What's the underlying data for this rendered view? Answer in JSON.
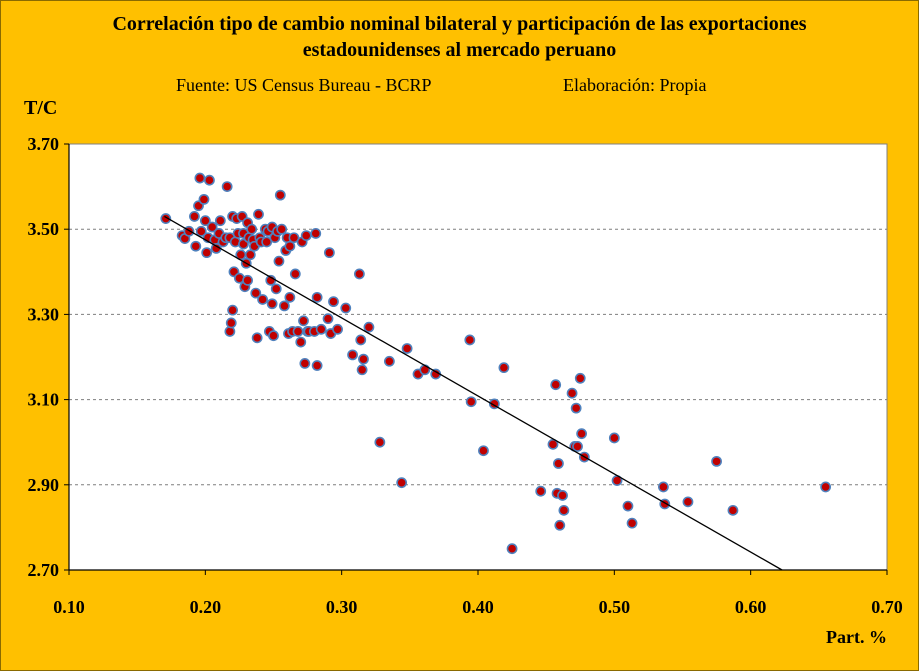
{
  "chart_data": {
    "type": "scatter",
    "title": "Correlación tipo de cambio nominal bilateral y participación de las exportaciones",
    "title_line2": "estadounidenses al mercado peruano",
    "source": "Fuente: US Census Bureau - BCRP",
    "credit": "Elaboración: Propia",
    "ylabel": "T/C",
    "xlabel": "Part. %",
    "xlim": [
      0.1,
      0.7
    ],
    "ylim": [
      2.7,
      3.7
    ],
    "x_ticks": [
      "0.10",
      "0.20",
      "0.30",
      "0.40",
      "0.50",
      "0.60",
      "0.70"
    ],
    "y_ticks": [
      "3.70",
      "3.50",
      "3.30",
      "3.10",
      "2.90",
      "2.70"
    ],
    "grid": "horizontal dashed",
    "colors": {
      "background": "#FFC000",
      "plot": "#FFFFFF",
      "marker_fill": "#C00000",
      "marker_edge": "#4F81BD",
      "trend": "#000000"
    },
    "trendline": {
      "x": [
        0.17,
        0.623
      ],
      "y": [
        3.53,
        2.7
      ]
    },
    "points": [
      [
        0.171,
        3.525
      ],
      [
        0.183,
        3.485
      ],
      [
        0.185,
        3.478
      ],
      [
        0.188,
        3.495
      ],
      [
        0.192,
        3.53
      ],
      [
        0.193,
        3.46
      ],
      [
        0.195,
        3.555
      ],
      [
        0.196,
        3.62
      ],
      [
        0.197,
        3.495
      ],
      [
        0.199,
        3.57
      ],
      [
        0.2,
        3.52
      ],
      [
        0.201,
        3.445
      ],
      [
        0.202,
        3.48
      ],
      [
        0.203,
        3.615
      ],
      [
        0.205,
        3.505
      ],
      [
        0.207,
        3.475
      ],
      [
        0.208,
        3.455
      ],
      [
        0.21,
        3.49
      ],
      [
        0.211,
        3.52
      ],
      [
        0.213,
        3.47
      ],
      [
        0.215,
        3.48
      ],
      [
        0.216,
        3.6
      ],
      [
        0.218,
        3.26
      ],
      [
        0.218,
        3.48
      ],
      [
        0.219,
        3.28
      ],
      [
        0.22,
        3.31
      ],
      [
        0.22,
        3.53
      ],
      [
        0.221,
        3.4
      ],
      [
        0.222,
        3.47
      ],
      [
        0.223,
        3.525
      ],
      [
        0.224,
        3.49
      ],
      [
        0.225,
        3.385
      ],
      [
        0.226,
        3.44
      ],
      [
        0.227,
        3.53
      ],
      [
        0.228,
        3.465
      ],
      [
        0.228,
        3.49
      ],
      [
        0.229,
        3.365
      ],
      [
        0.23,
        3.42
      ],
      [
        0.231,
        3.38
      ],
      [
        0.231,
        3.515
      ],
      [
        0.232,
        3.48
      ],
      [
        0.233,
        3.44
      ],
      [
        0.234,
        3.5
      ],
      [
        0.235,
        3.475
      ],
      [
        0.236,
        3.46
      ],
      [
        0.237,
        3.35
      ],
      [
        0.238,
        3.245
      ],
      [
        0.239,
        3.535
      ],
      [
        0.24,
        3.48
      ],
      [
        0.241,
        3.47
      ],
      [
        0.242,
        3.335
      ],
      [
        0.244,
        3.5
      ],
      [
        0.245,
        3.47
      ],
      [
        0.246,
        3.495
      ],
      [
        0.247,
        3.26
      ],
      [
        0.248,
        3.38
      ],
      [
        0.249,
        3.325
      ],
      [
        0.249,
        3.505
      ],
      [
        0.25,
        3.25
      ],
      [
        0.251,
        3.48
      ],
      [
        0.252,
        3.36
      ],
      [
        0.253,
        3.495
      ],
      [
        0.254,
        3.425
      ],
      [
        0.255,
        3.58
      ],
      [
        0.256,
        3.5
      ],
      [
        0.258,
        3.32
      ],
      [
        0.259,
        3.45
      ],
      [
        0.26,
        3.48
      ],
      [
        0.261,
        3.255
      ],
      [
        0.262,
        3.34
      ],
      [
        0.262,
        3.46
      ],
      [
        0.264,
        3.26
      ],
      [
        0.265,
        3.48
      ],
      [
        0.266,
        3.395
      ],
      [
        0.268,
        3.26
      ],
      [
        0.27,
        3.235
      ],
      [
        0.271,
        3.47
      ],
      [
        0.272,
        3.285
      ],
      [
        0.273,
        3.185
      ],
      [
        0.274,
        3.485
      ],
      [
        0.275,
        3.26
      ],
      [
        0.276,
        3.26
      ],
      [
        0.28,
        3.26
      ],
      [
        0.281,
        3.49
      ],
      [
        0.282,
        3.34
      ],
      [
        0.282,
        3.18
      ],
      [
        0.285,
        3.265
      ],
      [
        0.29,
        3.29
      ],
      [
        0.291,
        3.445
      ],
      [
        0.292,
        3.255
      ],
      [
        0.294,
        3.33
      ],
      [
        0.297,
        3.265
      ],
      [
        0.303,
        3.315
      ],
      [
        0.308,
        3.205
      ],
      [
        0.313,
        3.395
      ],
      [
        0.314,
        3.24
      ],
      [
        0.315,
        3.17
      ],
      [
        0.316,
        3.195
      ],
      [
        0.32,
        3.27
      ],
      [
        0.328,
        3.0
      ],
      [
        0.335,
        3.19
      ],
      [
        0.344,
        2.905
      ],
      [
        0.348,
        3.22
      ],
      [
        0.356,
        3.16
      ],
      [
        0.361,
        3.17
      ],
      [
        0.369,
        3.16
      ],
      [
        0.394,
        3.24
      ],
      [
        0.395,
        3.095
      ],
      [
        0.404,
        2.98
      ],
      [
        0.412,
        3.09
      ],
      [
        0.419,
        3.175
      ],
      [
        0.425,
        2.75
      ],
      [
        0.446,
        2.885
      ],
      [
        0.455,
        2.995
      ],
      [
        0.457,
        3.135
      ],
      [
        0.458,
        2.88
      ],
      [
        0.459,
        2.95
      ],
      [
        0.46,
        2.805
      ],
      [
        0.462,
        2.875
      ],
      [
        0.463,
        2.84
      ],
      [
        0.469,
        3.115
      ],
      [
        0.471,
        2.99
      ],
      [
        0.472,
        3.08
      ],
      [
        0.473,
        2.99
      ],
      [
        0.475,
        3.15
      ],
      [
        0.476,
        3.02
      ],
      [
        0.478,
        2.965
      ],
      [
        0.5,
        3.01
      ],
      [
        0.502,
        2.91
      ],
      [
        0.51,
        2.85
      ],
      [
        0.513,
        2.81
      ],
      [
        0.536,
        2.895
      ],
      [
        0.537,
        2.855
      ],
      [
        0.554,
        2.86
      ],
      [
        0.575,
        2.955
      ],
      [
        0.587,
        2.84
      ],
      [
        0.655,
        2.895
      ]
    ]
  }
}
